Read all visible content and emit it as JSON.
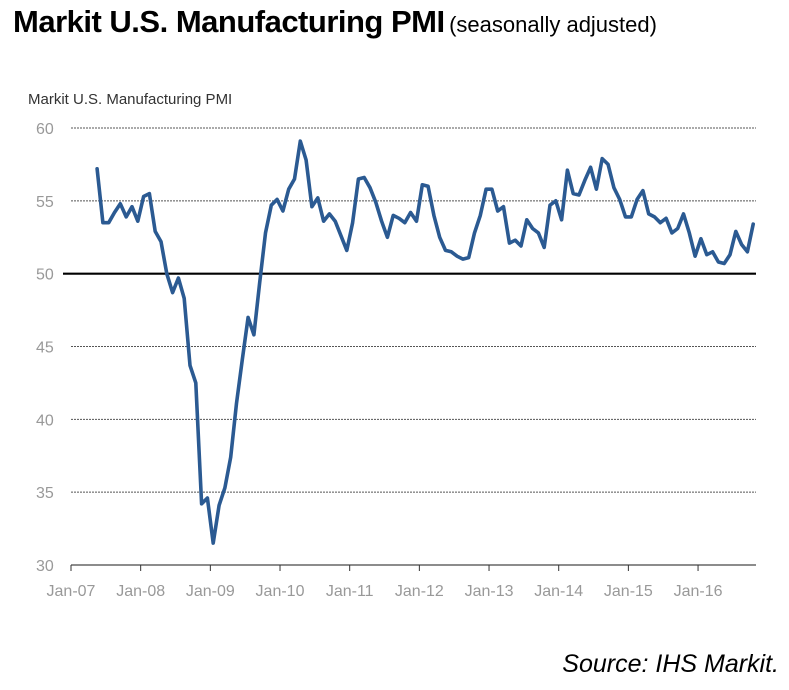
{
  "header": {
    "title": "Markit U.S. Manufacturing PMI",
    "subtitle": "(seasonally adjusted)"
  },
  "footer": {
    "source": "Source: IHS Markit."
  },
  "colors": {
    "line": "#2b5a92",
    "grid": "#555555",
    "threshold": "#000000",
    "tick_text": "#999999"
  },
  "chart_data": {
    "type": "line",
    "title": "Markit U.S. Manufacturing PMI",
    "ylabel": "",
    "xlabel": "",
    "ylim": [
      30,
      60
    ],
    "yticks": [
      60,
      55,
      50,
      45,
      40,
      35,
      30
    ],
    "xtick_labels": [
      "Jan-07",
      "Jan-08",
      "Jan-09",
      "Jan-10",
      "Jan-11",
      "Jan-12",
      "Jan-13",
      "Jan-14",
      "Jan-15",
      "Jan-16"
    ],
    "grid": true,
    "reference_line": 50,
    "x_start": "May-07",
    "x_end": "Oct-16",
    "frequency": "monthly",
    "series": [
      {
        "name": "Markit U.S. Manufacturing PMI",
        "values": [
          57.2,
          53.5,
          53.5,
          54.2,
          54.8,
          53.9,
          54.6,
          53.6,
          55.3,
          55.5,
          52.9,
          52.2,
          50.0,
          48.7,
          49.7,
          48.3,
          43.7,
          42.5,
          34.2,
          34.6,
          31.5,
          34.1,
          35.3,
          37.4,
          41.1,
          44.1,
          47.0,
          45.8,
          49.4,
          52.8,
          54.7,
          55.1,
          54.3,
          55.8,
          56.5,
          59.1,
          57.8,
          54.6,
          55.2,
          53.6,
          54.1,
          53.6,
          52.6,
          51.6,
          53.5,
          56.5,
          56.6,
          55.9,
          54.9,
          53.6,
          52.5,
          54.0,
          53.8,
          53.5,
          54.2,
          53.6,
          56.1,
          56.0,
          54.0,
          52.5,
          51.6,
          51.5,
          51.2,
          51.0,
          51.1,
          52.8,
          54.0,
          55.8,
          55.8,
          54.3,
          54.6,
          52.1,
          52.3,
          51.9,
          53.7,
          53.1,
          52.8,
          51.8,
          54.7,
          55.0,
          53.7,
          57.1,
          55.5,
          55.4,
          56.4,
          57.3,
          55.8,
          57.9,
          57.5,
          55.9,
          55.1,
          53.9,
          53.9,
          55.1,
          55.7,
          54.1,
          53.9,
          53.5,
          53.8,
          52.8,
          53.1,
          54.1,
          52.8,
          51.2,
          52.4,
          51.3,
          51.5,
          50.8,
          50.7,
          51.3,
          52.9,
          52.0,
          51.5,
          53.4
        ]
      }
    ]
  }
}
